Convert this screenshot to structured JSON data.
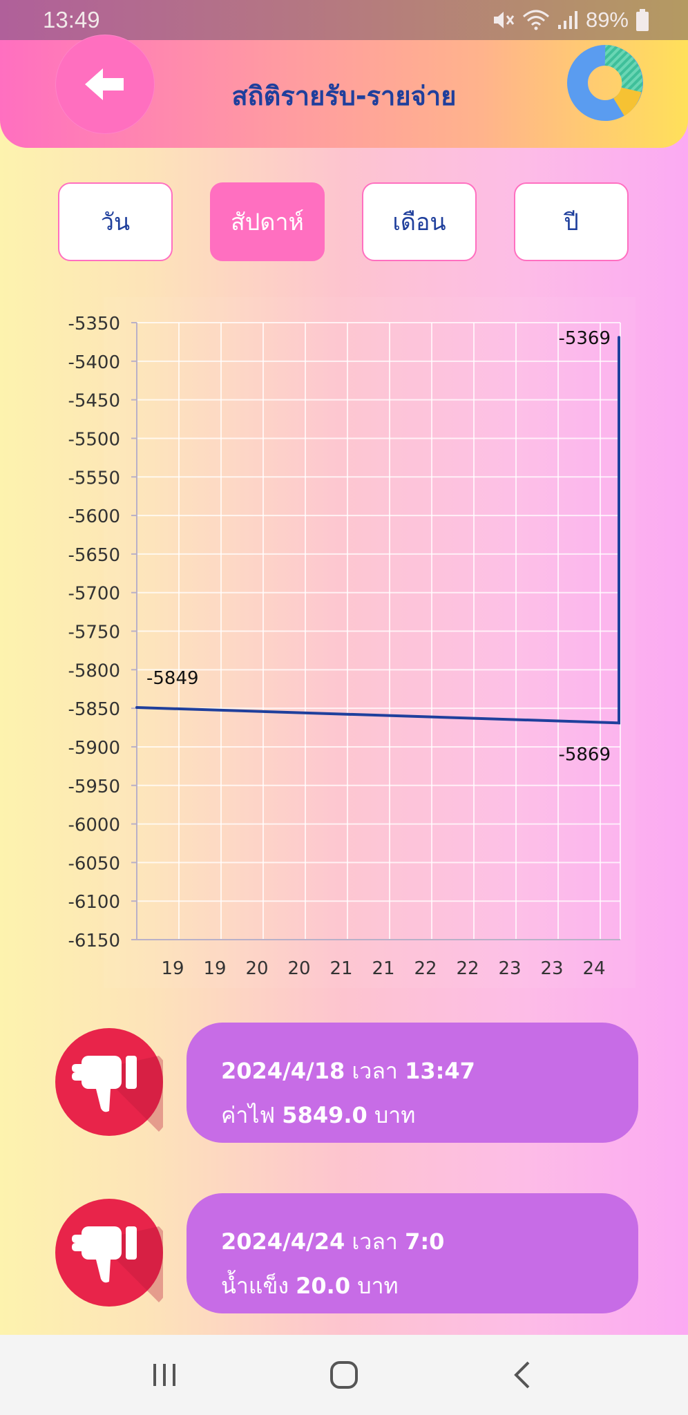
{
  "status_bar": {
    "time": "13:49",
    "battery": "89%"
  },
  "header": {
    "title": "สถิติรายรับ-รายจ่าย",
    "back_icon": "arrow-left-icon",
    "chart_icon": "donut-chart-icon"
  },
  "tabs": [
    {
      "label": "วัน",
      "active": false
    },
    {
      "label": "สัปดาห์",
      "active": true
    },
    {
      "label": "เดือน",
      "active": false
    },
    {
      "label": "ปี",
      "active": false
    }
  ],
  "chart_data": {
    "type": "line",
    "title": "",
    "xlabel": "",
    "ylabel": "",
    "ylim": [
      -6150,
      -5350
    ],
    "y_ticks": [
      "-5350",
      "-5400",
      "-5450",
      "-5500",
      "-5550",
      "-5600",
      "-5650",
      "-5700",
      "-5750",
      "-5800",
      "-5850",
      "-5900",
      "-5950",
      "-6000",
      "-6050",
      "-6100",
      "-6150"
    ],
    "x_ticks": [
      "19",
      "19",
      "20",
      "20",
      "21",
      "21",
      "22",
      "22",
      "23",
      "23",
      "24"
    ],
    "grid": true,
    "series": [
      {
        "points": [
          {
            "x": "2024/4/18 13:47",
            "y": -5849,
            "label": "-5849"
          },
          {
            "x": "2024/4/24 7:0",
            "y": -5869,
            "label": "-5869"
          },
          {
            "x": "2024/4/24 7:0",
            "y": -5369,
            "label": "-5369"
          }
        ]
      }
    ],
    "line_color": "#1f3f9c"
  },
  "records": [
    {
      "date": "2024/4/18",
      "time_word": "เวลา",
      "time": "13:47",
      "item": "ค่าไฟ",
      "amount": "5849.0",
      "unit": "บาท",
      "icon": "thumbs-down-icon"
    },
    {
      "date": "2024/4/24",
      "time_word": "เวลา",
      "time": "7:0",
      "item": "น้ำแข็ง",
      "amount": "20.0",
      "unit": "บาท",
      "icon": "thumbs-down-icon"
    }
  ],
  "colors": {
    "accent": "#ff6fc0",
    "title": "#1f3f9c",
    "card": "#c76ce6",
    "expense": "#e8244a"
  }
}
